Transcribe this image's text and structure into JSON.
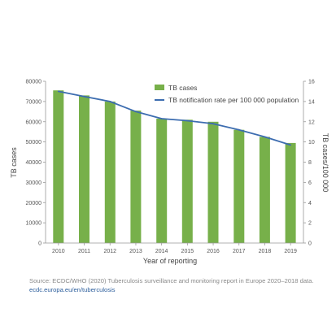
{
  "chart_data": {
    "type": "bar",
    "categories": [
      "2010",
      "2011",
      "2012",
      "2013",
      "2014",
      "2015",
      "2016",
      "2017",
      "2018",
      "2019"
    ],
    "series": [
      {
        "name": "TB cases",
        "kind": "bar",
        "axis": "left",
        "color": "#77b04a",
        "values": [
          75500,
          73000,
          70000,
          65500,
          61500,
          61000,
          60000,
          56000,
          52500,
          49500
        ]
      },
      {
        "name": "TB notification rate per 100 000 population",
        "kind": "line",
        "axis": "right",
        "color": "#3d6db0",
        "values": [
          15.0,
          14.5,
          14.0,
          13.0,
          12.3,
          12.1,
          11.8,
          11.2,
          10.5,
          9.7
        ]
      }
    ],
    "xlabel": "Year of reporting",
    "ylabel": "TB cases",
    "ylabel_right": "TB cases/100 000",
    "ylim": [
      0,
      80000
    ],
    "ylim_right": [
      0,
      16
    ],
    "yticks": [
      0,
      10000,
      20000,
      30000,
      40000,
      50000,
      60000,
      70000,
      80000
    ],
    "yticks_right": [
      0,
      2,
      4,
      6,
      8,
      10,
      12,
      14,
      16
    ],
    "legend_position": "top-right",
    "grid": false
  },
  "source": {
    "text": "Source: ECDC/WHO (2020) Tuberculosis surveillance and monitoring report in Europe 2020–2018 data.",
    "link": "ecdc.europa.eu/en/tuberculosis"
  }
}
